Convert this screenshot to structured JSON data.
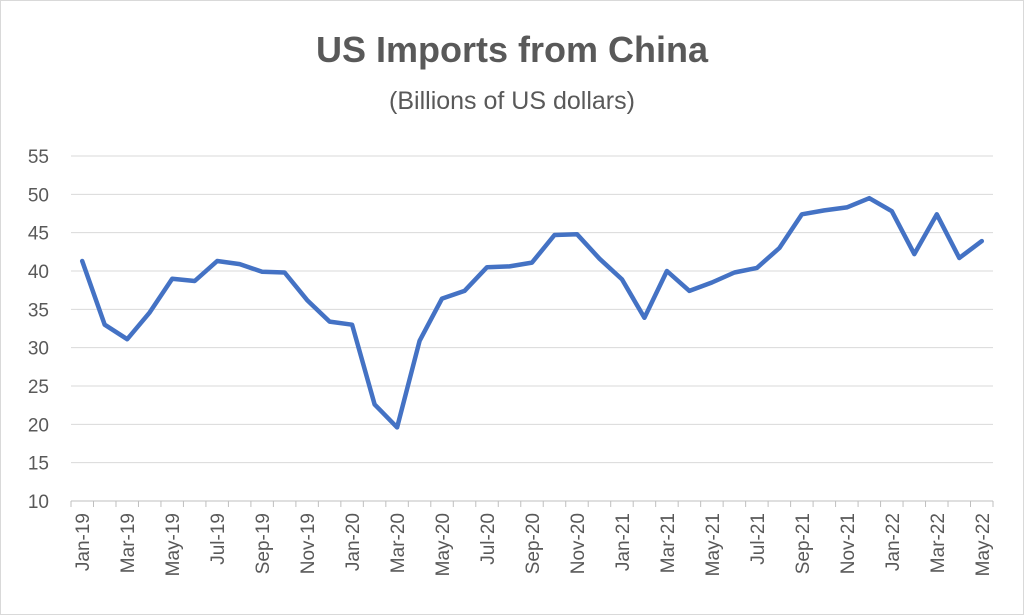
{
  "chart_data": {
    "type": "line",
    "title": "US Imports from China",
    "subtitle": "(Billions of US dollars)",
    "xlabel": "",
    "ylabel": "",
    "ylim": [
      10,
      55
    ],
    "yticks": [
      10,
      15,
      20,
      25,
      30,
      35,
      40,
      45,
      50,
      55
    ],
    "grid": true,
    "x": [
      "Jan-19",
      "Feb-19",
      "Mar-19",
      "Apr-19",
      "May-19",
      "Jun-19",
      "Jul-19",
      "Aug-19",
      "Sep-19",
      "Oct-19",
      "Nov-19",
      "Dec-19",
      "Jan-20",
      "Feb-20",
      "Mar-20",
      "Apr-20",
      "May-20",
      "Jun-20",
      "Jul-20",
      "Aug-20",
      "Sep-20",
      "Oct-20",
      "Nov-20",
      "Dec-20",
      "Jan-21",
      "Feb-21",
      "Mar-21",
      "Apr-21",
      "May-21",
      "Jun-21",
      "Jul-21",
      "Aug-21",
      "Sep-21",
      "Oct-21",
      "Nov-21",
      "Dec-21",
      "Jan-22",
      "Feb-22",
      "Mar-22",
      "Apr-22",
      "May-22"
    ],
    "xtick_labels": [
      "Jan-19",
      "Mar-19",
      "May-19",
      "Jul-19",
      "Sep-19",
      "Nov-19",
      "Jan-20",
      "Mar-20",
      "May-20",
      "Jul-20",
      "Sep-20",
      "Nov-20",
      "Jan-21",
      "Mar-21",
      "May-21",
      "Jul-21",
      "Sep-21",
      "Nov-21",
      "Jan-22",
      "Mar-22",
      "May-22"
    ],
    "series": [
      {
        "values": [
          41.3,
          33.0,
          31.1,
          34.6,
          39.0,
          38.7,
          41.3,
          40.9,
          39.9,
          39.8,
          36.2,
          33.4,
          33.0,
          22.6,
          19.6,
          30.9,
          36.4,
          37.4,
          40.5,
          40.6,
          41.1,
          44.7,
          44.8,
          41.6,
          38.9,
          33.9,
          40.0,
          37.4,
          38.5,
          39.8,
          40.4,
          43.0,
          47.4,
          47.9,
          48.3,
          49.5,
          47.8,
          42.2,
          47.4,
          41.7,
          43.9
        ],
        "color": "#4472c4"
      }
    ]
  }
}
